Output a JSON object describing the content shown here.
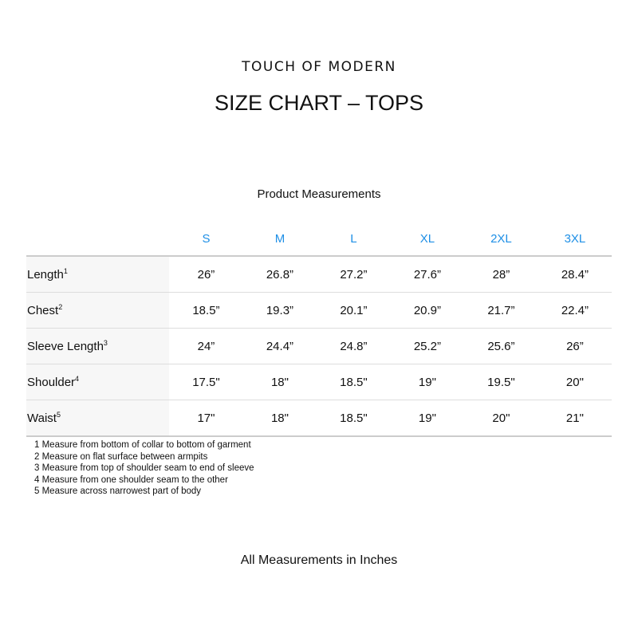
{
  "brand": "TOUCH OF MODERN",
  "title": "SIZE CHART – TOPS",
  "subtitle": "Product Measurements",
  "accent_color": "#1e8fe6",
  "sizes": [
    "S",
    "M",
    "L",
    "XL",
    "2XL",
    "3XL"
  ],
  "rows": [
    {
      "label": "Length",
      "note": "1",
      "values": [
        "26”",
        "26.8”",
        "27.2”",
        "27.6”",
        "28”",
        "28.4”"
      ]
    },
    {
      "label": "Chest",
      "note": "2",
      "values": [
        "18.5”",
        "19.3”",
        "20.1”",
        "20.9”",
        "21.7”",
        "22.4”"
      ]
    },
    {
      "label": "Sleeve Length",
      "note": "3",
      "values": [
        "24”",
        "24.4”",
        "24.8”",
        "25.2”",
        "25.6”",
        "26”"
      ]
    },
    {
      "label": "Shoulder",
      "note": "4",
      "values": [
        "17.5\"",
        "18\"",
        "18.5\"",
        "19\"",
        "19.5\"",
        "20\""
      ]
    },
    {
      "label": "Waist",
      "note": "5",
      "values": [
        "17\"",
        "18\"",
        "18.5\"",
        "19\"",
        "20\"",
        "21\""
      ]
    }
  ],
  "notes": [
    "1 Measure from bottom of collar to bottom of garment",
    "2 Measure on flat surface between armpits",
    "3 Measure from top of shoulder seam to end of sleeve",
    "4 Measure from one shoulder seam to the other",
    "5 Measure across narrowest part of body"
  ],
  "footer": "All Measurements in Inches"
}
